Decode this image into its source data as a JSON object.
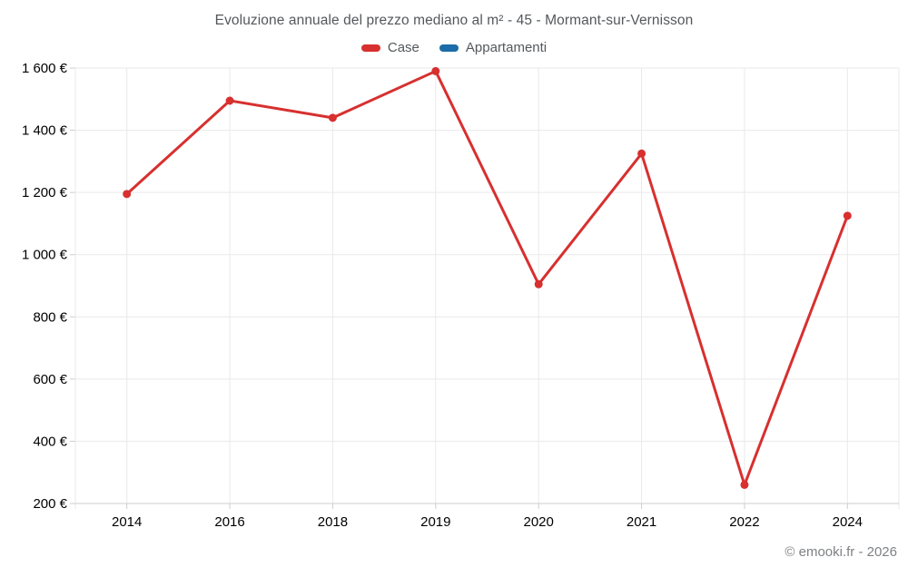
{
  "ui": {
    "title": "Evoluzione annuale del prezzo mediano al m² - 45 - Mormant-sur-Vernisson",
    "footer": "© emooki.fr - 2026"
  },
  "legend": {
    "items": [
      {
        "label": "Case",
        "color": "#d7302f"
      },
      {
        "label": "Appartamenti",
        "color": "#1b6ca8"
      }
    ]
  },
  "chart_data": {
    "type": "line",
    "title": "Evoluzione annuale del prezzo mediano al m² - 45 - Mormant-sur-Vernisson",
    "categories": [
      "2014",
      "2016",
      "2018",
      "2019",
      "2020",
      "2021",
      "2022",
      "2024"
    ],
    "series": [
      {
        "name": "Case",
        "color": "#d7302f",
        "values": [
          1195,
          1495,
          1440,
          1590,
          905,
          1325,
          260,
          1125
        ]
      },
      {
        "name": "Appartamenti",
        "color": "#1b6ca8",
        "values": []
      }
    ],
    "xlabel": "",
    "ylabel": "",
    "ylim": [
      200,
      1600
    ],
    "yticks": [
      200,
      400,
      600,
      800,
      1000,
      1200,
      1400,
      1600
    ],
    "ytick_labels": [
      "200 €",
      "400 €",
      "600 €",
      "800 €",
      "1 000 €",
      "1 200 €",
      "1 400 €",
      "1 600 €"
    ],
    "currency": "€",
    "grid": true,
    "legend_position": "top",
    "colors": {
      "grid": "#e9e9e9",
      "axis": "#cdcdcd",
      "tick_text": "#707477",
      "title_text": "#54585b",
      "footer_text": "#7e8184"
    }
  }
}
